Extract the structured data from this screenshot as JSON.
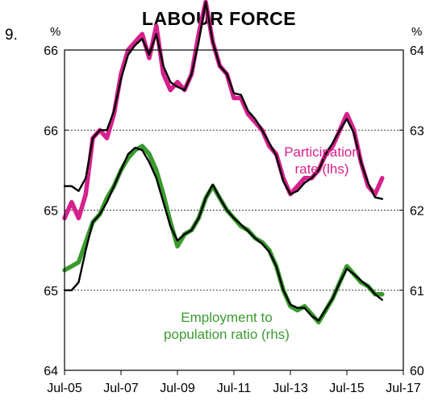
{
  "figure": {
    "number": "9.",
    "title": "LABOUR FORCE",
    "unit_left": "%",
    "unit_right": "%"
  },
  "colors": {
    "participation": "#d6208c",
    "employment": "#3a9a2e",
    "trend": "#000000"
  },
  "chart_data": {
    "type": "line",
    "title": "LABOUR FORCE",
    "x_tick_labels": [
      "Jul-05",
      "Jul-07",
      "Jul-09",
      "Jul-11",
      "Jul-13",
      "Jul-15",
      "Jul-17"
    ],
    "xlim": [
      "2005-07",
      "2017-07"
    ],
    "left_axis": {
      "unit": "%",
      "tick_labels": [
        "64",
        "65",
        "65",
        "66",
        "66"
      ],
      "ylim": [
        64.0,
        66.0
      ]
    },
    "right_axis": {
      "unit": "%",
      "tick_labels": [
        "60",
        "61",
        "62",
        "63",
        "64"
      ],
      "ylim": [
        60,
        64
      ]
    },
    "gridlines": "horizontal dotted",
    "annotations": {
      "participation": "Participation\nrate (lhs)",
      "employment": "Employment to\npopulation ratio (rhs)"
    },
    "series": [
      {
        "name": "Participation rate (lhs)",
        "axis": "left",
        "style": "monthly",
        "x": [
          "2005-07",
          "2005-10",
          "2006-01",
          "2006-04",
          "2006-07",
          "2006-10",
          "2007-01",
          "2007-04",
          "2007-07",
          "2007-10",
          "2008-01",
          "2008-04",
          "2008-07",
          "2008-10",
          "2009-01",
          "2009-04",
          "2009-07",
          "2009-10",
          "2010-01",
          "2010-04",
          "2010-07",
          "2010-10",
          "2011-01",
          "2011-04",
          "2011-07",
          "2011-10",
          "2012-01",
          "2012-04",
          "2012-07",
          "2012-10",
          "2013-01",
          "2013-04",
          "2013-07",
          "2013-10",
          "2014-01",
          "2014-04",
          "2014-07",
          "2014-10",
          "2015-01",
          "2015-04",
          "2015-07",
          "2015-10",
          "2016-01",
          "2016-04",
          "2016-07",
          "2016-10"
        ],
        "y": [
          64.95,
          65.05,
          64.95,
          65.1,
          65.45,
          65.5,
          65.45,
          65.6,
          65.85,
          66.0,
          66.05,
          66.1,
          65.95,
          66.15,
          65.85,
          65.75,
          65.8,
          65.75,
          65.85,
          66.1,
          66.3,
          66.05,
          65.9,
          65.85,
          65.7,
          65.7,
          65.6,
          65.55,
          65.5,
          65.4,
          65.35,
          65.2,
          65.1,
          65.15,
          65.2,
          65.2,
          65.25,
          65.35,
          65.4,
          65.5,
          65.6,
          65.5,
          65.3,
          65.15,
          65.1,
          65.2
        ]
      },
      {
        "name": "Participation rate (lhs) trend",
        "axis": "left",
        "style": "trend",
        "x": [
          "2005-07",
          "2005-10",
          "2006-01",
          "2006-04",
          "2006-07",
          "2006-10",
          "2007-01",
          "2007-04",
          "2007-07",
          "2007-10",
          "2008-01",
          "2008-04",
          "2008-07",
          "2008-10",
          "2009-01",
          "2009-04",
          "2009-07",
          "2009-10",
          "2010-01",
          "2010-04",
          "2010-07",
          "2010-10",
          "2011-01",
          "2011-04",
          "2011-07",
          "2011-10",
          "2012-01",
          "2012-04",
          "2012-07",
          "2012-10",
          "2013-01",
          "2013-04",
          "2013-07",
          "2013-10",
          "2014-01",
          "2014-04",
          "2014-07",
          "2014-10",
          "2015-01",
          "2015-04",
          "2015-07",
          "2015-10",
          "2016-01",
          "2016-04",
          "2016-07",
          "2016-10"
        ],
        "y": [
          65.15,
          65.15,
          65.12,
          65.2,
          65.45,
          65.5,
          65.5,
          65.62,
          65.82,
          65.97,
          66.03,
          66.07,
          65.97,
          66.1,
          65.9,
          65.8,
          65.77,
          65.75,
          65.85,
          66.05,
          66.3,
          66.05,
          65.9,
          65.85,
          65.73,
          65.72,
          65.62,
          65.57,
          65.5,
          65.42,
          65.34,
          65.18,
          65.1,
          65.12,
          65.17,
          65.2,
          65.25,
          65.35,
          65.42,
          65.5,
          65.57,
          65.48,
          65.3,
          65.17,
          65.08,
          65.07
        ]
      },
      {
        "name": "Employment to population ratio (rhs)",
        "axis": "right",
        "style": "monthly",
        "x": [
          "2005-07",
          "2005-10",
          "2006-01",
          "2006-04",
          "2006-07",
          "2006-10",
          "2007-01",
          "2007-04",
          "2007-07",
          "2007-10",
          "2008-01",
          "2008-04",
          "2008-07",
          "2008-10",
          "2009-01",
          "2009-04",
          "2009-07",
          "2009-10",
          "2010-01",
          "2010-04",
          "2010-07",
          "2010-10",
          "2011-01",
          "2011-04",
          "2011-07",
          "2011-10",
          "2012-01",
          "2012-04",
          "2012-07",
          "2012-10",
          "2013-01",
          "2013-04",
          "2013-07",
          "2013-10",
          "2014-01",
          "2014-04",
          "2014-07",
          "2014-10",
          "2015-01",
          "2015-04",
          "2015-07",
          "2015-10",
          "2016-01",
          "2016-04",
          "2016-07",
          "2016-10"
        ],
        "y": [
          61.25,
          61.3,
          61.35,
          61.6,
          61.85,
          61.95,
          62.15,
          62.3,
          62.5,
          62.65,
          62.75,
          62.8,
          62.7,
          62.5,
          62.2,
          61.85,
          61.55,
          61.7,
          61.75,
          61.9,
          62.15,
          62.3,
          62.15,
          62.0,
          61.9,
          61.8,
          61.75,
          61.65,
          61.6,
          61.5,
          61.3,
          61.0,
          60.8,
          60.75,
          60.8,
          60.7,
          60.6,
          60.75,
          60.9,
          61.1,
          61.3,
          61.2,
          61.1,
          61.05,
          60.95,
          60.95
        ]
      },
      {
        "name": "Employment to population ratio (rhs) trend",
        "axis": "right",
        "style": "trend",
        "x": [
          "2005-07",
          "2005-10",
          "2006-01",
          "2006-04",
          "2006-07",
          "2006-10",
          "2007-01",
          "2007-04",
          "2007-07",
          "2007-10",
          "2008-01",
          "2008-04",
          "2008-07",
          "2008-10",
          "2009-01",
          "2009-04",
          "2009-07",
          "2009-10",
          "2010-01",
          "2010-04",
          "2010-07",
          "2010-10",
          "2011-01",
          "2011-04",
          "2011-07",
          "2011-10",
          "2012-01",
          "2012-04",
          "2012-07",
          "2012-10",
          "2013-01",
          "2013-04",
          "2013-07",
          "2013-10",
          "2014-01",
          "2014-04",
          "2014-07",
          "2014-10",
          "2015-01",
          "2015-04",
          "2015-07",
          "2015-10",
          "2016-01",
          "2016-04",
          "2016-07",
          "2016-10"
        ],
        "y": [
          61.0,
          61.0,
          61.1,
          61.5,
          61.85,
          61.95,
          62.1,
          62.3,
          62.5,
          62.7,
          62.78,
          62.75,
          62.6,
          62.4,
          62.1,
          61.8,
          61.62,
          61.7,
          61.75,
          61.9,
          62.15,
          62.32,
          62.15,
          62.0,
          61.9,
          61.82,
          61.74,
          61.65,
          61.58,
          61.48,
          61.3,
          61.0,
          60.82,
          60.78,
          60.78,
          60.68,
          60.62,
          60.76,
          60.9,
          61.1,
          61.27,
          61.2,
          61.12,
          61.05,
          60.95,
          60.88
        ]
      }
    ]
  }
}
